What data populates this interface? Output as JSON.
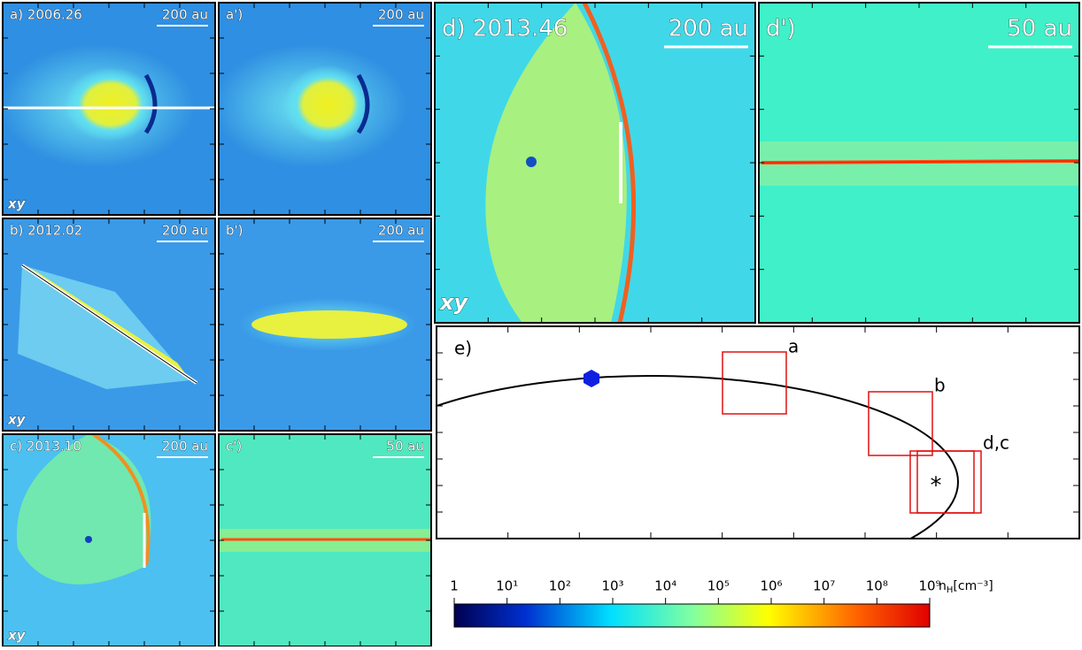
{
  "panels": [
    {
      "label": "a) 2006.26",
      "scale": "200 au",
      "tag": "xy"
    },
    {
      "label": "a')",
      "scale": "200 au"
    },
    {
      "label": "b) 2012.02",
      "scale": "200 au",
      "tag": "xy"
    },
    {
      "label": "b')",
      "scale": "200 au"
    },
    {
      "label": "c) 2013.10",
      "scale": "200 au",
      "tag": "xy"
    },
    {
      "label": "c')",
      "scale": "50 au"
    },
    {
      "label": "d) 2013.46",
      "scale": "200 au",
      "tag": "xy"
    },
    {
      "label": "d')",
      "scale": "50 au"
    }
  ],
  "orbit_panel": {
    "label": "e)",
    "box_labels": [
      "a",
      "b",
      "d,c"
    ],
    "star": "*"
  },
  "colorbar": {
    "scale": "log",
    "xlim": [
      1,
      1000000000
    ],
    "ticks": [
      1,
      {
        "value": 10,
        "label": "10¹"
      },
      {
        "value": 100,
        "label": "10²"
      },
      {
        "value": 1000,
        "label": "10³"
      },
      {
        "value": 10000,
        "label": "10⁴"
      },
      {
        "value": 100000,
        "label": "10⁵"
      },
      {
        "value": 1000000,
        "label": "10⁶"
      },
      {
        "value": 10000000,
        "label": "10⁷"
      },
      {
        "value": 100000000,
        "label": "10⁸"
      },
      {
        "value": 1000000000,
        "label": "10⁹"
      }
    ],
    "unit": {
      "symbol": "n",
      "subscript": "H",
      "rest": "[cm⁻³]"
    }
  }
}
